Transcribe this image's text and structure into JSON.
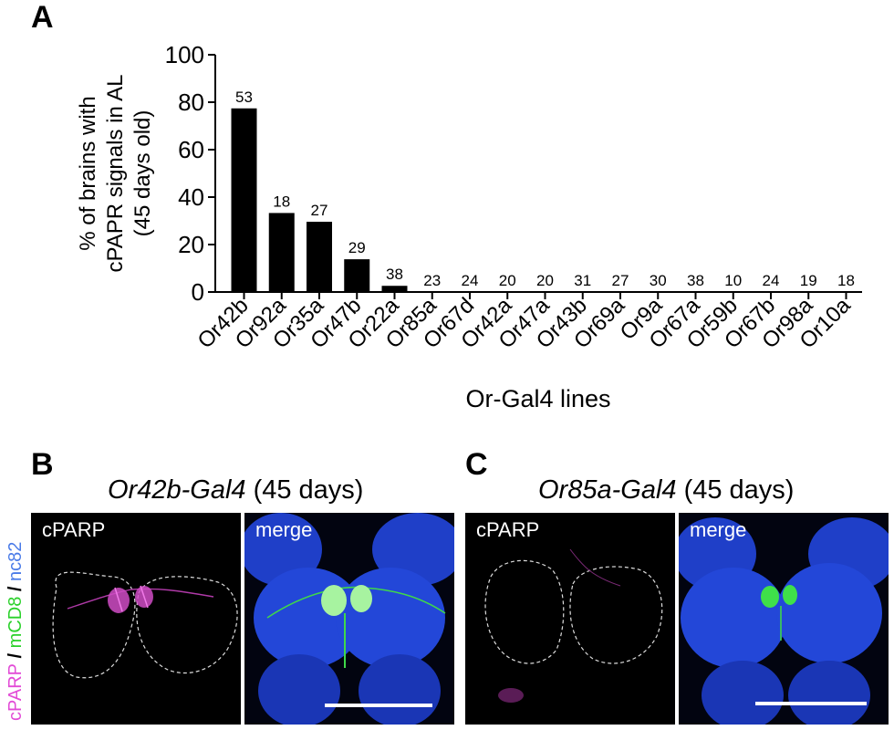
{
  "panels": {
    "a_label": "A",
    "b_label": "B",
    "c_label": "C"
  },
  "chart_data": {
    "type": "bar",
    "categories": [
      "Or42b",
      "Or92a",
      "Or35a",
      "Or47b",
      "Or22a",
      "Or85a",
      "Or67d",
      "Or42a",
      "Or47a",
      "Or43b",
      "Or69a",
      "Or9a",
      "Or67a",
      "Or59b",
      "Or67b",
      "Or98a",
      "Or10a"
    ],
    "values": [
      77.4,
      33.3,
      29.6,
      13.8,
      2.6,
      0,
      0,
      0,
      0,
      0,
      0,
      0,
      0,
      0,
      0,
      0,
      0
    ],
    "n_labels": [
      "53",
      "18",
      "27",
      "29",
      "38",
      "23",
      "24",
      "20",
      "20",
      "31",
      "27",
      "30",
      "38",
      "10",
      "24",
      "19",
      "18"
    ],
    "ylabel_lines": [
      "% of brains with",
      "cPAPR signals in AL",
      "(45 days old)"
    ],
    "xlabel": "Or-Gal4 lines",
    "ylim": [
      0,
      100
    ],
    "yticks": [
      "0",
      "20",
      "40",
      "60",
      "80",
      "100"
    ],
    "bar_color": "#000000"
  },
  "panel_b": {
    "title_italic": "Or42b-Gal4",
    "title_rest": " (45 days)",
    "left_label": "cPARP",
    "right_label": "merge"
  },
  "panel_c": {
    "title_italic": "Or85a-Gal4",
    "title_rest": " (45 days)",
    "left_label": "cPARP",
    "right_label": "merge"
  },
  "channel_label": {
    "cparp": "cPARP",
    "sep1": " / ",
    "mcd8": "mCD8",
    "sep2": " / ",
    "nc82": "nc82",
    "colors": {
      "cparp": "#e24bd6",
      "mcd8": "#2bd12b",
      "nc82": "#4a7be8",
      "sep": "#000000"
    }
  }
}
